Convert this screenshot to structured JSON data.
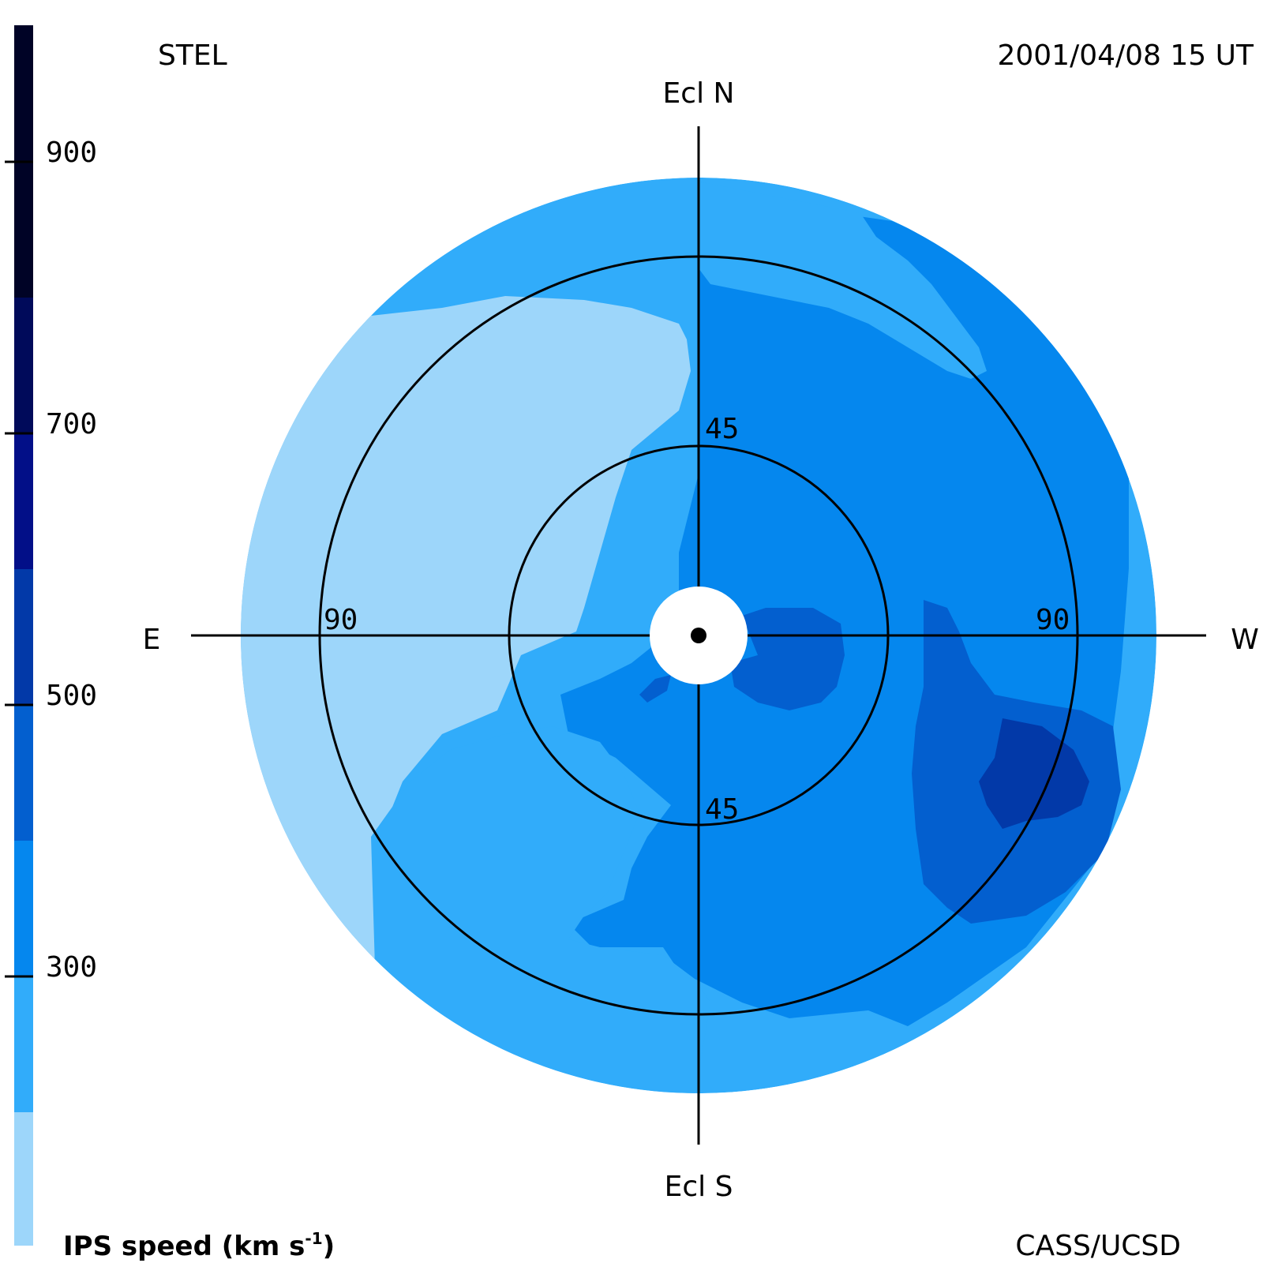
{
  "header": {
    "station": "STEL",
    "timestamp": "2001/04/08 15 UT"
  },
  "footer": {
    "credit": "CASS/UCSD",
    "colorbar_title": "IPS speed (km s",
    "colorbar_title_sup": "-1",
    "colorbar_title_end": ")"
  },
  "directions": {
    "north": "Ecl N",
    "south": "Ecl S",
    "east": "E",
    "west": "W"
  },
  "rings": {
    "inner_north": "45",
    "inner_south": "45",
    "outer_east": "90",
    "outer_west": "90"
  },
  "colorbar": {
    "ticks": [
      "300",
      "500",
      "700",
      "900"
    ],
    "bands": [
      "#9dd6fa",
      "#31acfa",
      "#0587ee",
      "#035fcf",
      "#0239a8",
      "#020f88",
      "#000a5a",
      "#000326"
    ]
  },
  "colors": {
    "lightest": "#9dd6fa",
    "light": "#31acfa",
    "mid": "#0587ee",
    "deep": "#035fcf",
    "deepest_region": "#0239a8"
  }
}
